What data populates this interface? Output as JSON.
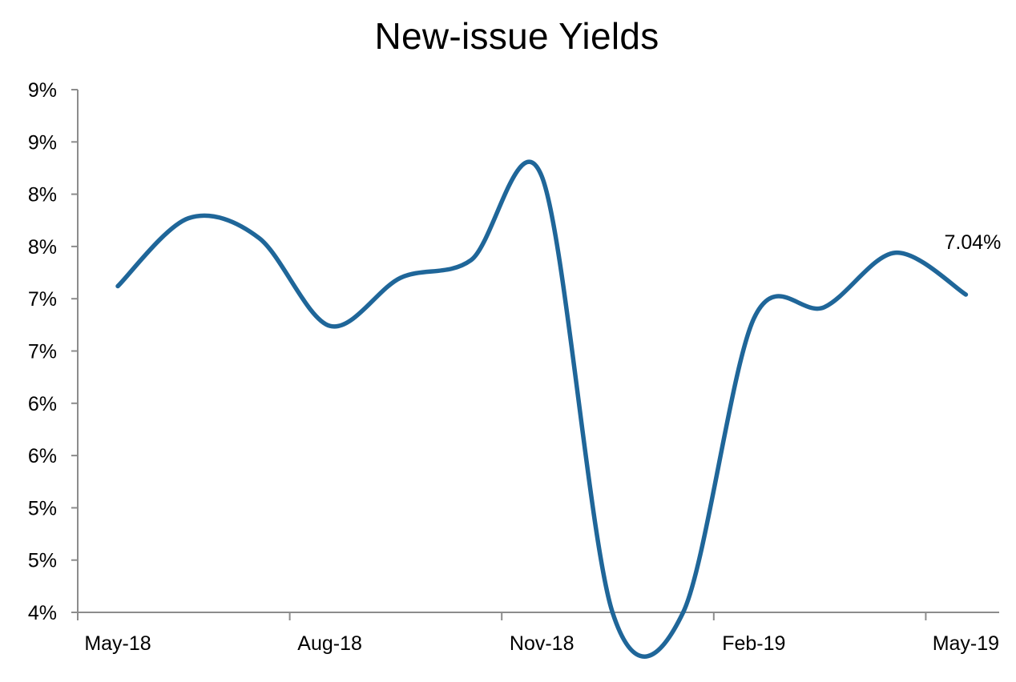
{
  "chart_data": {
    "type": "line",
    "title": "New-issue Yields",
    "xlabel": "",
    "ylabel": "",
    "x_tick_labels": [
      "May-18",
      "Aug-18",
      "Nov-18",
      "Feb-19",
      "May-19"
    ],
    "y_tick_labels": [
      "4%",
      "5%",
      "5%",
      "6%",
      "6%",
      "7%",
      "7%",
      "8%",
      "8%",
      "9%",
      "9%"
    ],
    "ylim": [
      4.0,
      9.0
    ],
    "x_range_months": [
      "2018-05",
      "2019-05"
    ],
    "grid": false,
    "legend": "none",
    "series": [
      {
        "color": "#1F6699",
        "points": [
          {
            "x": "2018-05",
            "y": 7.12
          },
          {
            "x": "2018-06",
            "y": 7.77
          },
          {
            "x": "2018-07",
            "y": 7.58
          },
          {
            "x": "2018-08",
            "y": 6.74
          },
          {
            "x": "2018-09",
            "y": 7.2
          },
          {
            "x": "2018-10",
            "y": 7.37
          },
          {
            "x": "2018-11",
            "y": 8.17
          },
          {
            "x": "2018-12",
            "y": 3.94
          },
          {
            "x": "2019-01",
            "y": 3.94
          },
          {
            "x": "2019-02",
            "y": 6.81
          },
          {
            "x": "2019-03",
            "y": 6.92
          },
          {
            "x": "2019-04",
            "y": 7.44
          },
          {
            "x": "2019-05",
            "y": 7.04
          }
        ]
      }
    ],
    "data_labels": [
      {
        "x": "2019-05",
        "text": "7.04%"
      }
    ]
  }
}
